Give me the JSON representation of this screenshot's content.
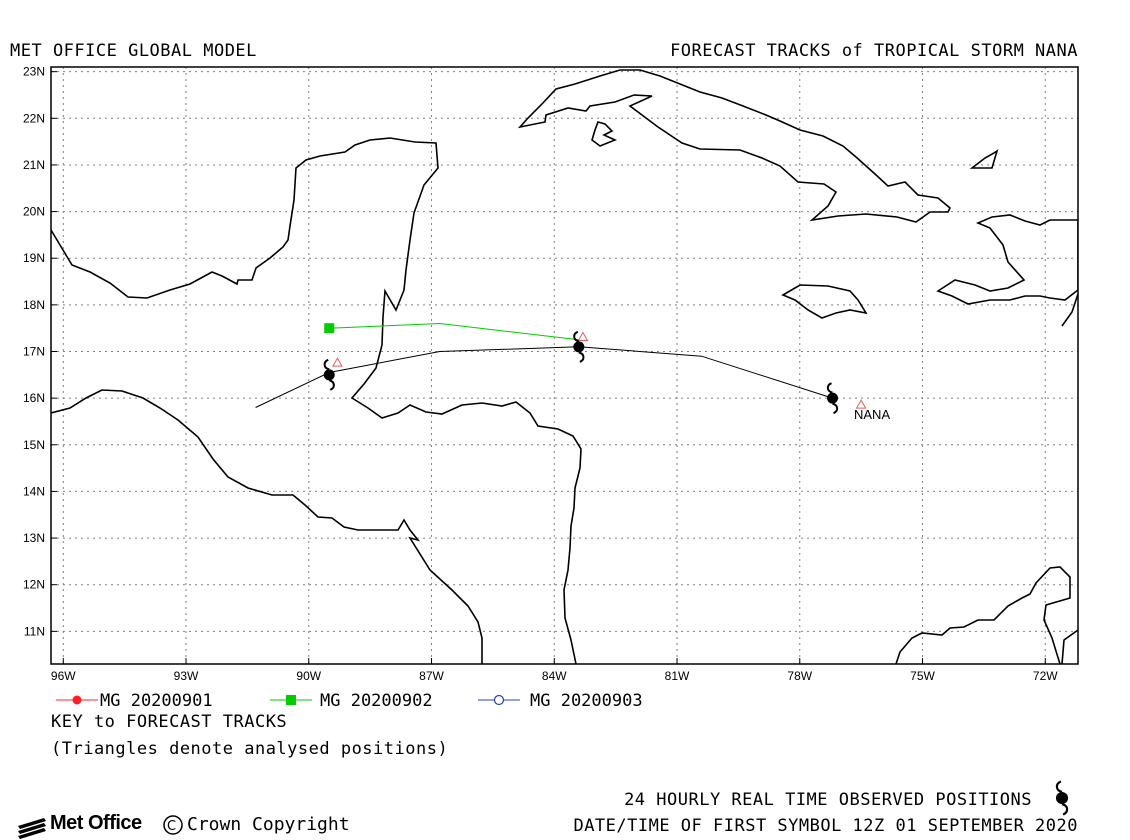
{
  "header": {
    "left_title": "MET OFFICE GLOBAL MODEL",
    "right_title": "FORECAST TRACKS of TROPICAL STORM NANA"
  },
  "map": {
    "lon_range": [
      -96.3,
      -71.2
    ],
    "lat_range": [
      10.3,
      23.1
    ],
    "lat_ticks": [
      "23N",
      "22N",
      "21N",
      "20N",
      "19N",
      "18N",
      "17N",
      "16N",
      "15N",
      "14N",
      "13N",
      "12N",
      "11N"
    ],
    "lon_ticks": [
      "96W",
      "93W",
      "90W",
      "87W",
      "84W",
      "81W",
      "78W",
      "75W",
      "72W"
    ],
    "storm_label": "NANA",
    "colors": {
      "coast": "#000000",
      "grid": "#808080",
      "run_20200901": "#ff2020",
      "run_20200902": "#00cc00",
      "run_20200903": "#2040c0",
      "observed": "#000000",
      "analysed": "#e06060"
    },
    "observed_track": [
      {
        "lon": -77.2,
        "lat": 16.0
      },
      {
        "lon": -83.4,
        "lat": 17.1
      },
      {
        "lon": -89.5,
        "lat": 16.5
      }
    ],
    "observed_line": [
      {
        "lon": -77.2,
        "lat": 16.0
      },
      {
        "lon": -80.4,
        "lat": 16.9
      },
      {
        "lon": -83.4,
        "lat": 17.1
      },
      {
        "lon": -86.8,
        "lat": 17.0
      },
      {
        "lon": -89.5,
        "lat": 16.55
      },
      {
        "lon": -91.3,
        "lat": 15.8
      }
    ],
    "forecast_20200902": [
      {
        "lon": -83.4,
        "lat": 17.25
      },
      {
        "lon": -86.8,
        "lat": 17.6
      },
      {
        "lon": -89.5,
        "lat": 17.5
      }
    ],
    "analysed_positions": [
      {
        "lon": -76.5,
        "lat": 15.85
      },
      {
        "lon": -83.3,
        "lat": 17.3
      },
      {
        "lon": -89.3,
        "lat": 16.75
      }
    ]
  },
  "legend": {
    "items": [
      {
        "label": "MG 20200901",
        "color": "#ff2020",
        "marker": "filled-circle"
      },
      {
        "label": "MG 20200902",
        "color": "#00cc00",
        "marker": "filled-square"
      },
      {
        "label": "MG 20200903",
        "color": "#2040c0",
        "marker": "open-circle"
      }
    ],
    "key_title": "KEY to FORECAST TRACKS",
    "key_note": "(Triangles denote analysed positions)"
  },
  "footer": {
    "observed_label": "24 HOURLY REAL TIME OBSERVED POSITIONS",
    "datetime_label": "DATE/TIME OF FIRST SYMBOL 12Z 01 SEPTEMBER 2020",
    "logo_text": "Met Office",
    "copyright_text": "Crown Copyright"
  }
}
